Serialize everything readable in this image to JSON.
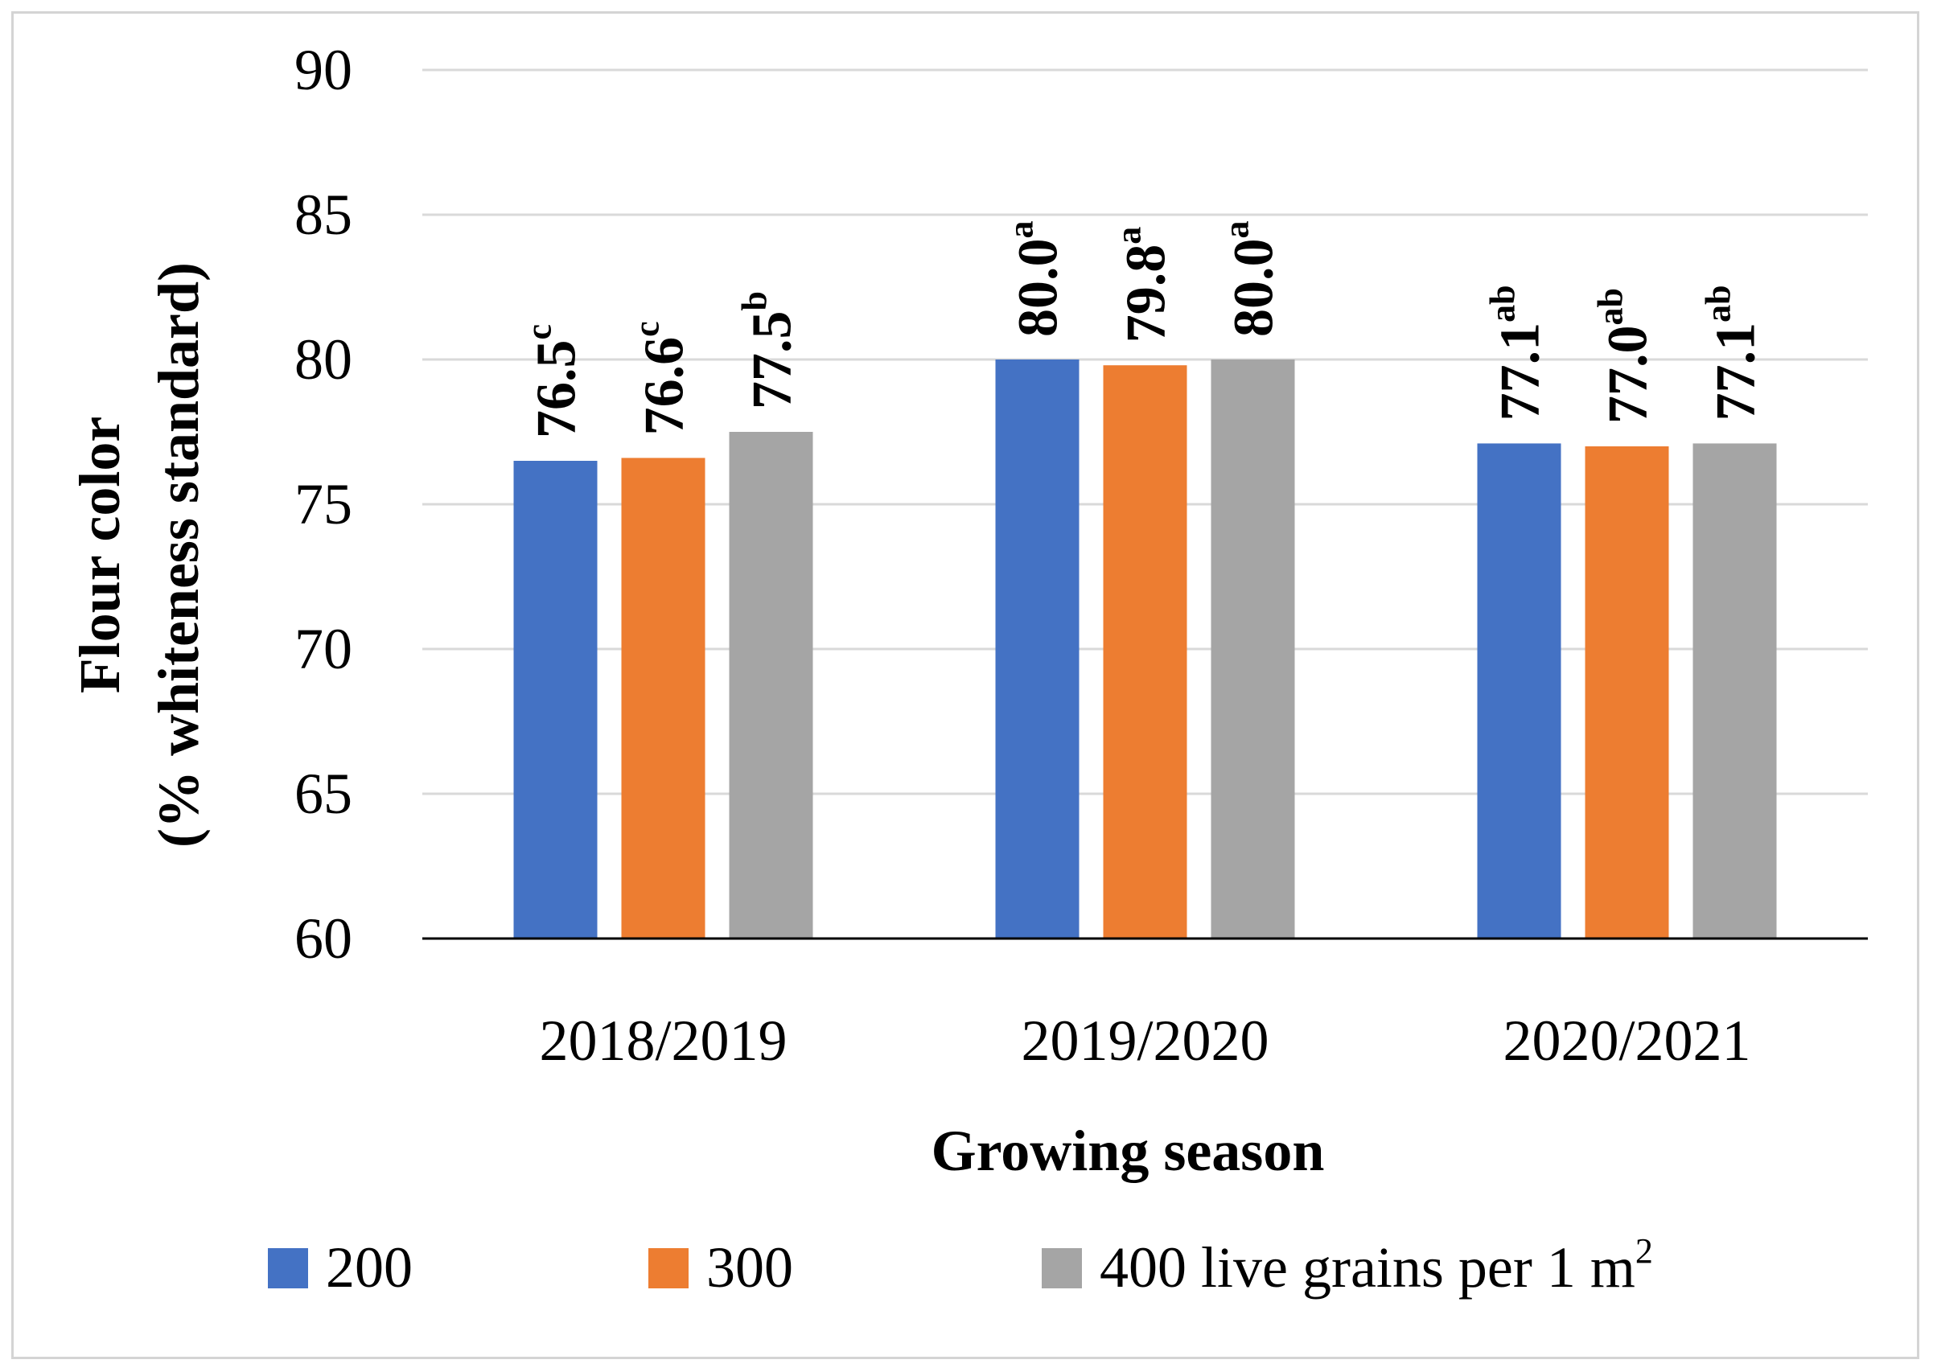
{
  "chart_data": {
    "type": "bar",
    "categories": [
      "2018/2019",
      "2019/2020",
      "2020/2021"
    ],
    "series": [
      {
        "name": "200",
        "color": "#4472c4",
        "values": [
          76.5,
          80.0,
          77.1
        ],
        "labels": [
          "76.5",
          "80.0",
          "77.1"
        ],
        "letters": [
          "c",
          "a",
          "ab"
        ]
      },
      {
        "name": "300",
        "color": "#ed7d31",
        "values": [
          76.6,
          79.8,
          77.0
        ],
        "labels": [
          "76.6",
          "79.8",
          "77.0"
        ],
        "letters": [
          "c",
          "a",
          "ab"
        ]
      },
      {
        "name": "400 live grains per 1 m",
        "legend_sup": "2",
        "color": "#a5a5a5",
        "values": [
          77.5,
          80.0,
          77.1
        ],
        "labels": [
          "77.5",
          "80.0",
          "77.1"
        ],
        "letters": [
          "b",
          "a",
          "ab"
        ]
      }
    ],
    "xlabel": "Growing season",
    "ylabel_line1": "Flour color",
    "ylabel_line2": "(% whiteness standard)",
    "ylim": [
      60,
      90
    ],
    "yticks": [
      "60",
      "65",
      "70",
      "75",
      "80",
      "85",
      "90"
    ],
    "grid": true,
    "legend_position": "bottom"
  }
}
